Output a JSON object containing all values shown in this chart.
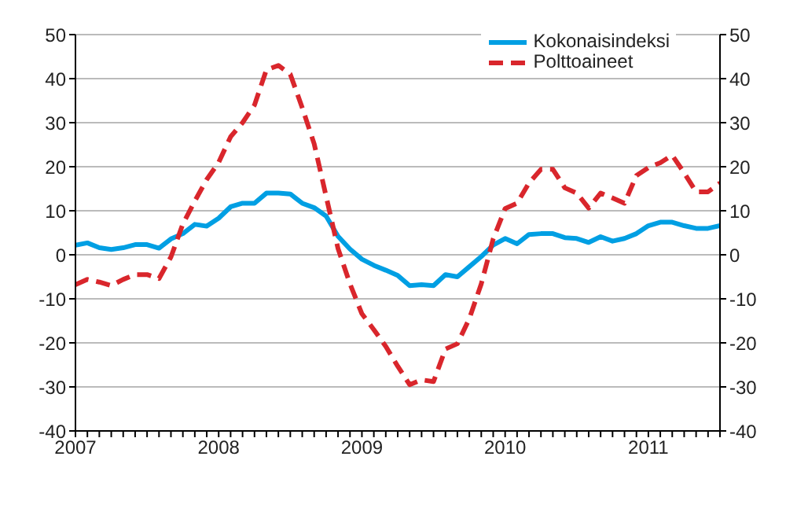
{
  "chart_data": {
    "type": "line",
    "x": [
      "2007-01",
      "2007-02",
      "2007-03",
      "2007-04",
      "2007-05",
      "2007-06",
      "2007-07",
      "2007-08",
      "2007-09",
      "2007-10",
      "2007-11",
      "2007-12",
      "2008-01",
      "2008-02",
      "2008-03",
      "2008-04",
      "2008-05",
      "2008-06",
      "2008-07",
      "2008-08",
      "2008-09",
      "2008-10",
      "2008-11",
      "2008-12",
      "2009-01",
      "2009-02",
      "2009-03",
      "2009-04",
      "2009-05",
      "2009-06",
      "2009-07",
      "2009-08",
      "2009-09",
      "2009-10",
      "2009-11",
      "2009-12",
      "2010-01",
      "2010-02",
      "2010-03",
      "2010-04",
      "2010-05",
      "2010-06",
      "2010-07",
      "2010-08",
      "2010-09",
      "2010-10",
      "2010-11",
      "2010-12",
      "2011-01",
      "2011-02",
      "2011-03",
      "2011-04",
      "2011-05",
      "2011-06",
      "2011-07"
    ],
    "series": [
      {
        "name": "Kokonaisindeksi",
        "color": "#009fe3",
        "line_style": "solid",
        "values": [
          2.2,
          2.7,
          1.6,
          1.2,
          1.6,
          2.3,
          2.3,
          1.5,
          3.6,
          4.8,
          6.9,
          6.5,
          8.3,
          10.9,
          11.7,
          11.7,
          14,
          14,
          13.8,
          11.7,
          10.7,
          8.8,
          4.2,
          1.3,
          -1,
          -2.4,
          -3.5,
          -4.7,
          -7,
          -6.8,
          -7,
          -4.5,
          -5,
          -2.7,
          -0.4,
          2.2,
          3.7,
          2.5,
          4.6,
          4.8,
          4.8,
          3.9,
          3.7,
          2.8,
          4.1,
          3.1,
          3.7,
          4.8,
          6.6,
          7.4,
          7.4,
          6.6,
          6,
          6,
          6.6
        ]
      },
      {
        "name": "Polttoaineet",
        "color": "#d9262c",
        "line_style": "dashed",
        "values": [
          -6.8,
          -5.6,
          -6.2,
          -7,
          -5.6,
          -4.5,
          -4.5,
          -5.4,
          -0.5,
          7,
          12.2,
          17.1,
          21,
          26.8,
          30,
          34,
          42,
          43,
          41,
          33.4,
          25.2,
          13.3,
          1.4,
          -6.6,
          -13.4,
          -17,
          -20.8,
          -25.3,
          -29.5,
          -28.4,
          -28.8,
          -21.4,
          -20.2,
          -14.5,
          -6.6,
          3.6,
          10.5,
          11.7,
          16.3,
          19.4,
          19.4,
          15.2,
          14,
          10.6,
          14,
          12.9,
          11.7,
          18,
          19.8,
          20.9,
          22.6,
          18.6,
          14.3,
          14.3,
          16.3
        ]
      }
    ],
    "xlim": [
      "2007-01",
      "2011-07"
    ],
    "xticks": [
      {
        "value": "2007-01",
        "label": "2007"
      },
      {
        "value": "2007-02",
        "label": null
      },
      {
        "value": "2007-03",
        "label": null
      },
      {
        "value": "2007-04",
        "label": null
      },
      {
        "value": "2007-05",
        "label": null
      },
      {
        "value": "2007-06",
        "label": null
      },
      {
        "value": "2007-07",
        "label": null
      },
      {
        "value": "2007-08",
        "label": null
      },
      {
        "value": "2007-09",
        "label": null
      },
      {
        "value": "2007-10",
        "label": null
      },
      {
        "value": "2007-11",
        "label": null
      },
      {
        "value": "2007-12",
        "label": null
      },
      {
        "value": "2008-01",
        "label": "2008"
      },
      {
        "value": "2008-02",
        "label": null
      },
      {
        "value": "2008-03",
        "label": null
      },
      {
        "value": "2008-04",
        "label": null
      },
      {
        "value": "2008-05",
        "label": null
      },
      {
        "value": "2008-06",
        "label": null
      },
      {
        "value": "2008-07",
        "label": null
      },
      {
        "value": "2008-08",
        "label": null
      },
      {
        "value": "2008-09",
        "label": null
      },
      {
        "value": "2008-10",
        "label": null
      },
      {
        "value": "2008-11",
        "label": null
      },
      {
        "value": "2008-12",
        "label": null
      },
      {
        "value": "2009-01",
        "label": "2009"
      },
      {
        "value": "2009-02",
        "label": null
      },
      {
        "value": "2009-03",
        "label": null
      },
      {
        "value": "2009-04",
        "label": null
      },
      {
        "value": "2009-05",
        "label": null
      },
      {
        "value": "2009-06",
        "label": null
      },
      {
        "value": "2009-07",
        "label": null
      },
      {
        "value": "2009-08",
        "label": null
      },
      {
        "value": "2009-09",
        "label": null
      },
      {
        "value": "2009-10",
        "label": null
      },
      {
        "value": "2009-11",
        "label": null
      },
      {
        "value": "2009-12",
        "label": null
      },
      {
        "value": "2010-01",
        "label": "2010"
      },
      {
        "value": "2010-02",
        "label": null
      },
      {
        "value": "2010-03",
        "label": null
      },
      {
        "value": "2010-04",
        "label": null
      },
      {
        "value": "2010-05",
        "label": null
      },
      {
        "value": "2010-06",
        "label": null
      },
      {
        "value": "2010-07",
        "label": null
      },
      {
        "value": "2010-08",
        "label": null
      },
      {
        "value": "2010-09",
        "label": null
      },
      {
        "value": "2010-10",
        "label": null
      },
      {
        "value": "2010-11",
        "label": null
      },
      {
        "value": "2010-12",
        "label": null
      },
      {
        "value": "2011-01",
        "label": "2011"
      },
      {
        "value": "2011-02",
        "label": null
      },
      {
        "value": "2011-03",
        "label": null
      },
      {
        "value": "2011-04",
        "label": null
      },
      {
        "value": "2011-05",
        "label": null
      },
      {
        "value": "2011-06",
        "label": null
      },
      {
        "value": "2011-07",
        "label": null
      }
    ],
    "ylim": [
      -40,
      50
    ],
    "yticks": [
      -40,
      -30,
      -20,
      -10,
      0,
      10,
      20,
      30,
      40,
      50
    ],
    "y2lim": [
      -40,
      50
    ],
    "y2ticks": [
      -40,
      -30,
      -20,
      -10,
      0,
      10,
      20,
      30,
      40,
      50
    ],
    "grid": "y",
    "legend": "top right",
    "marker": "none"
  }
}
